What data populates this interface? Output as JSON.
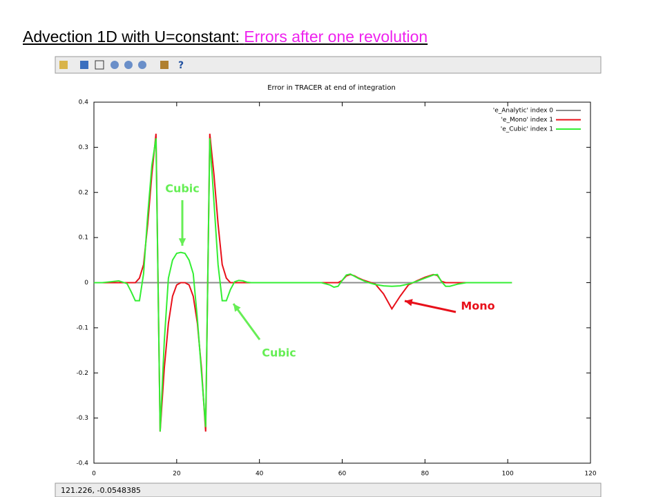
{
  "slide": {
    "title_part1": "Advection 1D with U=constant:",
    "title_part2": "Errors after one revolution",
    "status": "121.226, -0.0548385"
  },
  "chart_data": {
    "type": "line",
    "title": "Error in TRACER at end of integration",
    "x": [
      0,
      2,
      4,
      6,
      8,
      9,
      10,
      11,
      12,
      13,
      14,
      15,
      16,
      17,
      18,
      19,
      20,
      21,
      22,
      23,
      24,
      25,
      26,
      27,
      28,
      29,
      30,
      31,
      32,
      33,
      34,
      35,
      36,
      37,
      38,
      40,
      45,
      50,
      55,
      57,
      58,
      59,
      60,
      61,
      62,
      63,
      64,
      65,
      66,
      68,
      70,
      72,
      74,
      76,
      78,
      80,
      82,
      83,
      84,
      85,
      86,
      88,
      90,
      95,
      101
    ],
    "series": [
      {
        "name": "'e_Analytic' index 0",
        "color": "#8c8c8c",
        "values": [
          0,
          0,
          0,
          0,
          0,
          0,
          0,
          0,
          0,
          0,
          0,
          0,
          0,
          0,
          0,
          0,
          0,
          0,
          0,
          0,
          0,
          0,
          0,
          0,
          0,
          0,
          0,
          0,
          0,
          0,
          0,
          0,
          0,
          0,
          0,
          0,
          0,
          0,
          0,
          0,
          0,
          0,
          0,
          0,
          0,
          0,
          0,
          0,
          0,
          0,
          0,
          0,
          0,
          0,
          0,
          0,
          0,
          0,
          0,
          0,
          0,
          0,
          0,
          0,
          0
        ]
      },
      {
        "name": "'e_Mono' index 1",
        "color": "#e8101a",
        "values": [
          0,
          0,
          0,
          0,
          0,
          0,
          0,
          0.01,
          0.04,
          0.13,
          0.24,
          0.33,
          -0.33,
          -0.19,
          -0.09,
          -0.03,
          -0.005,
          0,
          0,
          -0.005,
          -0.03,
          -0.09,
          -0.19,
          -0.33,
          0.33,
          0.24,
          0.13,
          0.04,
          0.01,
          0,
          0,
          0,
          0,
          0,
          0,
          0,
          0,
          0,
          0,
          0,
          0,
          0,
          0.005,
          0.015,
          0.018,
          0.015,
          0.01,
          0.006,
          0.003,
          -0.003,
          -0.025,
          -0.058,
          -0.03,
          -0.005,
          0.004,
          0.012,
          0.018,
          0.016,
          0.003,
          0,
          0,
          0,
          0,
          0,
          0
        ]
      },
      {
        "name": "'e_Cubic' index 1",
        "color": "#33ee33",
        "values": [
          0,
          0,
          0.002,
          0.004,
          -0.002,
          -0.02,
          -0.04,
          -0.04,
          0.02,
          0.15,
          0.26,
          0.32,
          -0.33,
          -0.13,
          0.01,
          0.05,
          0.065,
          0.067,
          0.065,
          0.05,
          0.02,
          -0.08,
          -0.2,
          -0.32,
          0.32,
          0.18,
          0.04,
          -0.04,
          -0.04,
          -0.015,
          0.002,
          0.005,
          0.004,
          0.001,
          0,
          0,
          0,
          0,
          0,
          -0.005,
          -0.01,
          -0.008,
          0.005,
          0.017,
          0.019,
          0.014,
          0.009,
          0.005,
          0.001,
          -0.004,
          -0.007,
          -0.008,
          -0.007,
          -0.003,
          0.003,
          0.01,
          0.017,
          0.018,
          0.002,
          -0.008,
          -0.008,
          -0.003,
          0,
          0,
          0
        ]
      }
    ],
    "xlim": [
      0,
      120
    ],
    "xticks": [
      0,
      20,
      40,
      60,
      80,
      100,
      120
    ],
    "ylim": [
      -0.4,
      0.4
    ],
    "yticks": [
      -0.4,
      -0.3,
      -0.2,
      -0.1,
      0,
      0.1,
      0.2,
      0.3,
      0.4
    ],
    "legend": "top-right",
    "annotations": [
      {
        "text": "Cubic",
        "color": "#66ee55"
      },
      {
        "text": "Cubic",
        "color": "#66ee55"
      },
      {
        "text": "Mono",
        "color": "#e8101a"
      }
    ]
  }
}
